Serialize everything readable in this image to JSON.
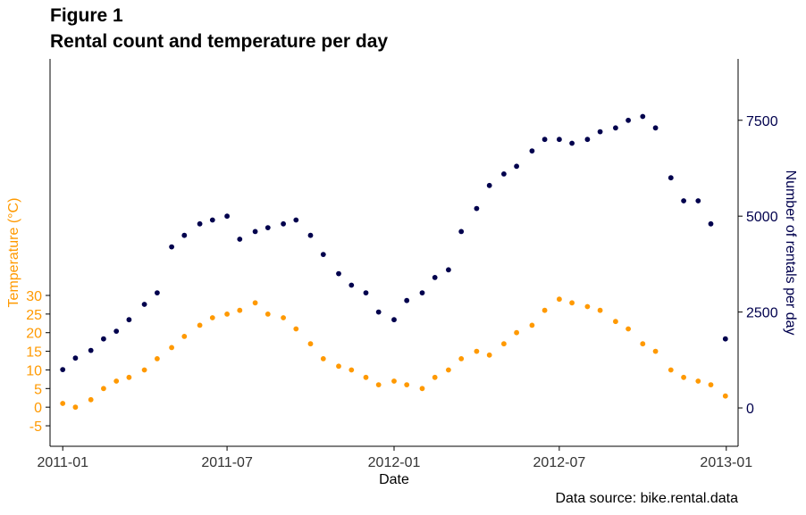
{
  "figure_number": "Figure 1",
  "title": "Rental count and temperature per day",
  "caption": "Data source: bike.rental.data",
  "chart_data": {
    "type": "scatter",
    "title": "Rental count and temperature per day",
    "subtitle": "Figure 1",
    "caption": "Data source: bike.rental.data",
    "xlabel": "Date",
    "ylabel_left": "Temperature (°C)",
    "ylabel_right": "Number of rentals per day",
    "x_ticks": [
      "2011-01",
      "2011-07",
      "2012-01",
      "2012-07",
      "2013-01"
    ],
    "y_left_ticks": [
      -5,
      0,
      5,
      10,
      15,
      20,
      25,
      30
    ],
    "y_right_ticks": [
      0,
      2500,
      5000,
      7500
    ],
    "x_range": [
      "2010-12-18",
      "2013-01-14"
    ],
    "y_left_range": [
      -10.5,
      93.5
    ],
    "y_right_range": [
      -1000,
      9100
    ],
    "grid": false,
    "legend": "none",
    "colors": {
      "temperature": "#FF9900",
      "rentals": "#00004D",
      "left_axis_text": "#FF9900",
      "right_axis_text": "#00004D"
    },
    "series": [
      {
        "axis": "left",
        "color": "#FF9900",
        "x": [
          "2011-01-01",
          "2011-01-15",
          "2011-02-01",
          "2011-02-15",
          "2011-03-01",
          "2011-03-15",
          "2011-04-01",
          "2011-04-15",
          "2011-05-01",
          "2011-05-15",
          "2011-06-01",
          "2011-06-15",
          "2011-07-01",
          "2011-07-15",
          "2011-08-01",
          "2011-08-15",
          "2011-09-01",
          "2011-09-15",
          "2011-10-01",
          "2011-10-15",
          "2011-11-01",
          "2011-11-15",
          "2011-12-01",
          "2011-12-15",
          "2012-01-01",
          "2012-01-15",
          "2012-02-01",
          "2012-02-15",
          "2012-03-01",
          "2012-03-15",
          "2012-04-01",
          "2012-04-15",
          "2012-05-01",
          "2012-05-15",
          "2012-06-01",
          "2012-06-15",
          "2012-07-01",
          "2012-07-15",
          "2012-08-01",
          "2012-08-15",
          "2012-09-01",
          "2012-09-15",
          "2012-10-01",
          "2012-10-15",
          "2012-11-01",
          "2012-11-15",
          "2012-12-01",
          "2012-12-15",
          "2012-12-31"
        ],
        "y": [
          1,
          0,
          2,
          5,
          7,
          8,
          10,
          13,
          16,
          19,
          22,
          24,
          25,
          26,
          28,
          25,
          24,
          21,
          17,
          13,
          11,
          10,
          8,
          6,
          7,
          6,
          5,
          8,
          10,
          13,
          15,
          14,
          17,
          20,
          22,
          26,
          29,
          28,
          27,
          26,
          23,
          21,
          17,
          15,
          10,
          8,
          7,
          6,
          3
        ]
      },
      {
        "axis": "right",
        "color": "#00004D",
        "x": [
          "2011-01-01",
          "2011-01-15",
          "2011-02-01",
          "2011-02-15",
          "2011-03-01",
          "2011-03-15",
          "2011-04-01",
          "2011-04-15",
          "2011-05-01",
          "2011-05-15",
          "2011-06-01",
          "2011-06-15",
          "2011-07-01",
          "2011-07-15",
          "2011-08-01",
          "2011-08-15",
          "2011-09-01",
          "2011-09-15",
          "2011-10-01",
          "2011-10-15",
          "2011-11-01",
          "2011-11-15",
          "2011-12-01",
          "2011-12-15",
          "2012-01-01",
          "2012-01-15",
          "2012-02-01",
          "2012-02-15",
          "2012-03-01",
          "2012-03-15",
          "2012-04-01",
          "2012-04-15",
          "2012-05-01",
          "2012-05-15",
          "2012-06-01",
          "2012-06-15",
          "2012-07-01",
          "2012-07-15",
          "2012-08-01",
          "2012-08-15",
          "2012-09-01",
          "2012-09-15",
          "2012-10-01",
          "2012-10-15",
          "2012-11-01",
          "2012-11-15",
          "2012-12-01",
          "2012-12-15",
          "2012-12-31"
        ],
        "y": [
          1000,
          1300,
          1500,
          1800,
          2000,
          2300,
          2700,
          3000,
          4200,
          4500,
          4800,
          4900,
          5000,
          4400,
          4600,
          4700,
          4800,
          4900,
          4500,
          4000,
          3500,
          3200,
          3000,
          2500,
          2300,
          2800,
          3000,
          3400,
          3600,
          4600,
          5200,
          5800,
          6100,
          6300,
          6700,
          7000,
          7000,
          6900,
          7000,
          7200,
          7300,
          7500,
          7600,
          7300,
          6000,
          5400,
          5400,
          4800,
          1800
        ]
      }
    ]
  }
}
